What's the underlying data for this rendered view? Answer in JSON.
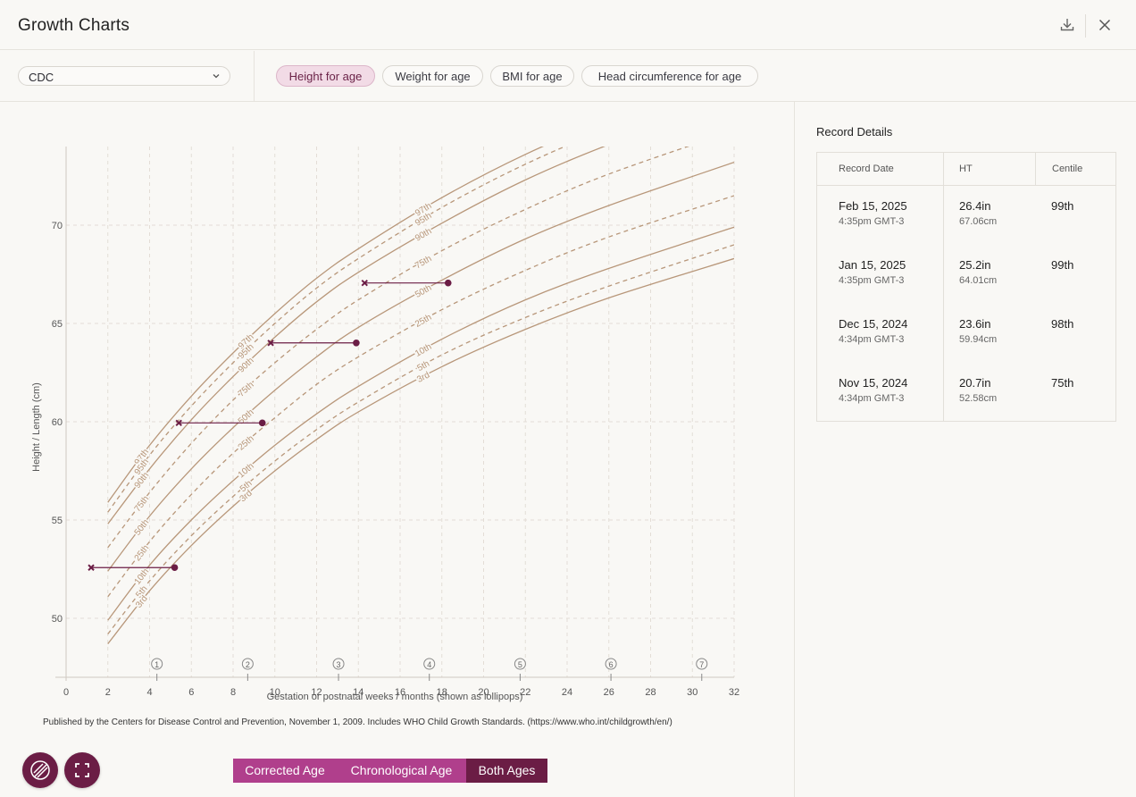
{
  "header": {
    "title": "Growth Charts"
  },
  "toolbar": {
    "source_select": "CDC",
    "chips": [
      "Height for age",
      "Weight for age",
      "BMI for age",
      "Head circumference for age"
    ]
  },
  "record_details": {
    "title": "Record Details",
    "columns": [
      "Record Date",
      "HT",
      "Centile"
    ],
    "rows": [
      {
        "date": "Feb 15, 2025",
        "time": "4:35pm GMT-3",
        "ht_in": "26.4in",
        "ht_cm": "67.06cm",
        "centile": "99th"
      },
      {
        "date": "Jan 15, 2025",
        "time": "4:35pm GMT-3",
        "ht_in": "25.2in",
        "ht_cm": "64.01cm",
        "centile": "99th"
      },
      {
        "date": "Dec 15, 2024",
        "time": "4:34pm GMT-3",
        "ht_in": "23.6in",
        "ht_cm": "59.94cm",
        "centile": "98th"
      },
      {
        "date": "Nov 15, 2024",
        "time": "4:34pm GMT-3",
        "ht_in": "20.7in",
        "ht_cm": "52.58cm",
        "centile": "75th"
      }
    ]
  },
  "footer_note": "Published by the Centers for Disease Control and Prevention, November 1, 2009. Includes WHO Child Growth Standards. (https://www.who.int/childgrowth/en/)",
  "age_toggle": [
    "Corrected Age",
    "Chronological Age",
    "Both Ages"
  ],
  "colors": {
    "accent": "#6b1d45",
    "toggle": "#b03f8c",
    "centile": "#b8977a"
  },
  "chart_data": {
    "type": "line",
    "xlabel": "Gestation or postnatal weeks / months (shown as lollipops)",
    "ylabel": "Height / Length (cm)",
    "xlim": [
      0,
      32
    ],
    "ylim": [
      47,
      74
    ],
    "x_ticks": [
      0,
      2,
      4,
      6,
      8,
      10,
      12,
      14,
      16,
      18,
      20,
      22,
      24,
      26,
      28,
      30,
      32
    ],
    "y_ticks": [
      50,
      55,
      60,
      65,
      70
    ],
    "grid": true,
    "month_lollipops": [
      {
        "label": "1",
        "x": 4.35
      },
      {
        "label": "2",
        "x": 8.7
      },
      {
        "label": "3",
        "x": 13.05
      },
      {
        "label": "4",
        "x": 17.4
      },
      {
        "label": "5",
        "x": 21.75
      },
      {
        "label": "6",
        "x": 26.1
      },
      {
        "label": "7",
        "x": 30.45
      }
    ],
    "centiles": [
      {
        "name": "97th",
        "dashed": false,
        "points": [
          [
            2,
            55.9
          ],
          [
            4,
            58.8
          ],
          [
            6,
            61.3
          ],
          [
            8,
            63.5
          ],
          [
            10,
            65.5
          ],
          [
            12,
            67.3
          ],
          [
            14,
            68.8
          ],
          [
            18,
            71.4
          ],
          [
            22,
            73.6
          ],
          [
            26,
            75.4
          ],
          [
            32,
            77.7
          ]
        ]
      },
      {
        "name": "95th",
        "dashed": true,
        "points": [
          [
            2,
            55.4
          ],
          [
            4,
            58.3
          ],
          [
            6,
            60.8
          ],
          [
            8,
            63.0
          ],
          [
            10,
            65.0
          ],
          [
            12,
            66.8
          ],
          [
            14,
            68.3
          ],
          [
            18,
            70.9
          ],
          [
            22,
            73.1
          ],
          [
            26,
            74.9
          ],
          [
            32,
            77.2
          ]
        ]
      },
      {
        "name": "90th",
        "dashed": false,
        "points": [
          [
            2,
            54.8
          ],
          [
            4,
            57.6
          ],
          [
            6,
            60.1
          ],
          [
            8,
            62.3
          ],
          [
            10,
            64.3
          ],
          [
            12,
            66.1
          ],
          [
            14,
            67.6
          ],
          [
            18,
            70.1
          ],
          [
            22,
            72.3
          ],
          [
            26,
            74.1
          ],
          [
            32,
            76.4
          ]
        ]
      },
      {
        "name": "75th",
        "dashed": true,
        "points": [
          [
            2,
            53.6
          ],
          [
            4,
            56.4
          ],
          [
            6,
            58.9
          ],
          [
            8,
            61.1
          ],
          [
            10,
            63.0
          ],
          [
            12,
            64.7
          ],
          [
            14,
            66.2
          ],
          [
            18,
            68.7
          ],
          [
            22,
            70.8
          ],
          [
            26,
            72.6
          ],
          [
            32,
            74.8
          ]
        ]
      },
      {
        "name": "50th",
        "dashed": false,
        "points": [
          [
            2,
            52.4
          ],
          [
            4,
            55.2
          ],
          [
            6,
            57.6
          ],
          [
            8,
            59.7
          ],
          [
            10,
            61.6
          ],
          [
            12,
            63.3
          ],
          [
            14,
            64.8
          ],
          [
            18,
            67.2
          ],
          [
            22,
            69.3
          ],
          [
            26,
            71.0
          ],
          [
            32,
            73.2
          ]
        ]
      },
      {
        "name": "25th",
        "dashed": true,
        "points": [
          [
            2,
            51.1
          ],
          [
            4,
            53.9
          ],
          [
            6,
            56.3
          ],
          [
            8,
            58.4
          ],
          [
            10,
            60.2
          ],
          [
            12,
            61.9
          ],
          [
            14,
            63.3
          ],
          [
            18,
            65.7
          ],
          [
            22,
            67.7
          ],
          [
            26,
            69.4
          ],
          [
            32,
            71.5
          ]
        ]
      },
      {
        "name": "10th",
        "dashed": false,
        "points": [
          [
            2,
            49.9
          ],
          [
            4,
            52.7
          ],
          [
            6,
            55.0
          ],
          [
            8,
            57.0
          ],
          [
            10,
            58.8
          ],
          [
            12,
            60.4
          ],
          [
            14,
            61.8
          ],
          [
            18,
            64.2
          ],
          [
            22,
            66.2
          ],
          [
            26,
            67.8
          ],
          [
            32,
            69.9
          ]
        ]
      },
      {
        "name": "5th",
        "dashed": true,
        "points": [
          [
            2,
            49.2
          ],
          [
            4,
            51.9
          ],
          [
            6,
            54.2
          ],
          [
            8,
            56.2
          ],
          [
            10,
            58.0
          ],
          [
            12,
            59.6
          ],
          [
            14,
            61.0
          ],
          [
            18,
            63.4
          ],
          [
            22,
            65.3
          ],
          [
            26,
            66.9
          ],
          [
            32,
            69.0
          ]
        ]
      },
      {
        "name": "3rd",
        "dashed": false,
        "points": [
          [
            2,
            48.7
          ],
          [
            4,
            51.4
          ],
          [
            6,
            53.7
          ],
          [
            8,
            55.7
          ],
          [
            10,
            57.5
          ],
          [
            12,
            59.1
          ],
          [
            14,
            60.5
          ],
          [
            18,
            62.8
          ],
          [
            22,
            64.7
          ],
          [
            26,
            66.3
          ],
          [
            32,
            68.3
          ]
        ]
      }
    ],
    "measurements": [
      {
        "corrected_x": 1.2,
        "chronological_x": 5.2,
        "y": 52.58
      },
      {
        "corrected_x": 5.4,
        "chronological_x": 9.4,
        "y": 59.94
      },
      {
        "corrected_x": 9.8,
        "chronological_x": 13.9,
        "y": 64.01
      },
      {
        "corrected_x": 14.3,
        "chronological_x": 18.3,
        "y": 67.06
      }
    ]
  }
}
